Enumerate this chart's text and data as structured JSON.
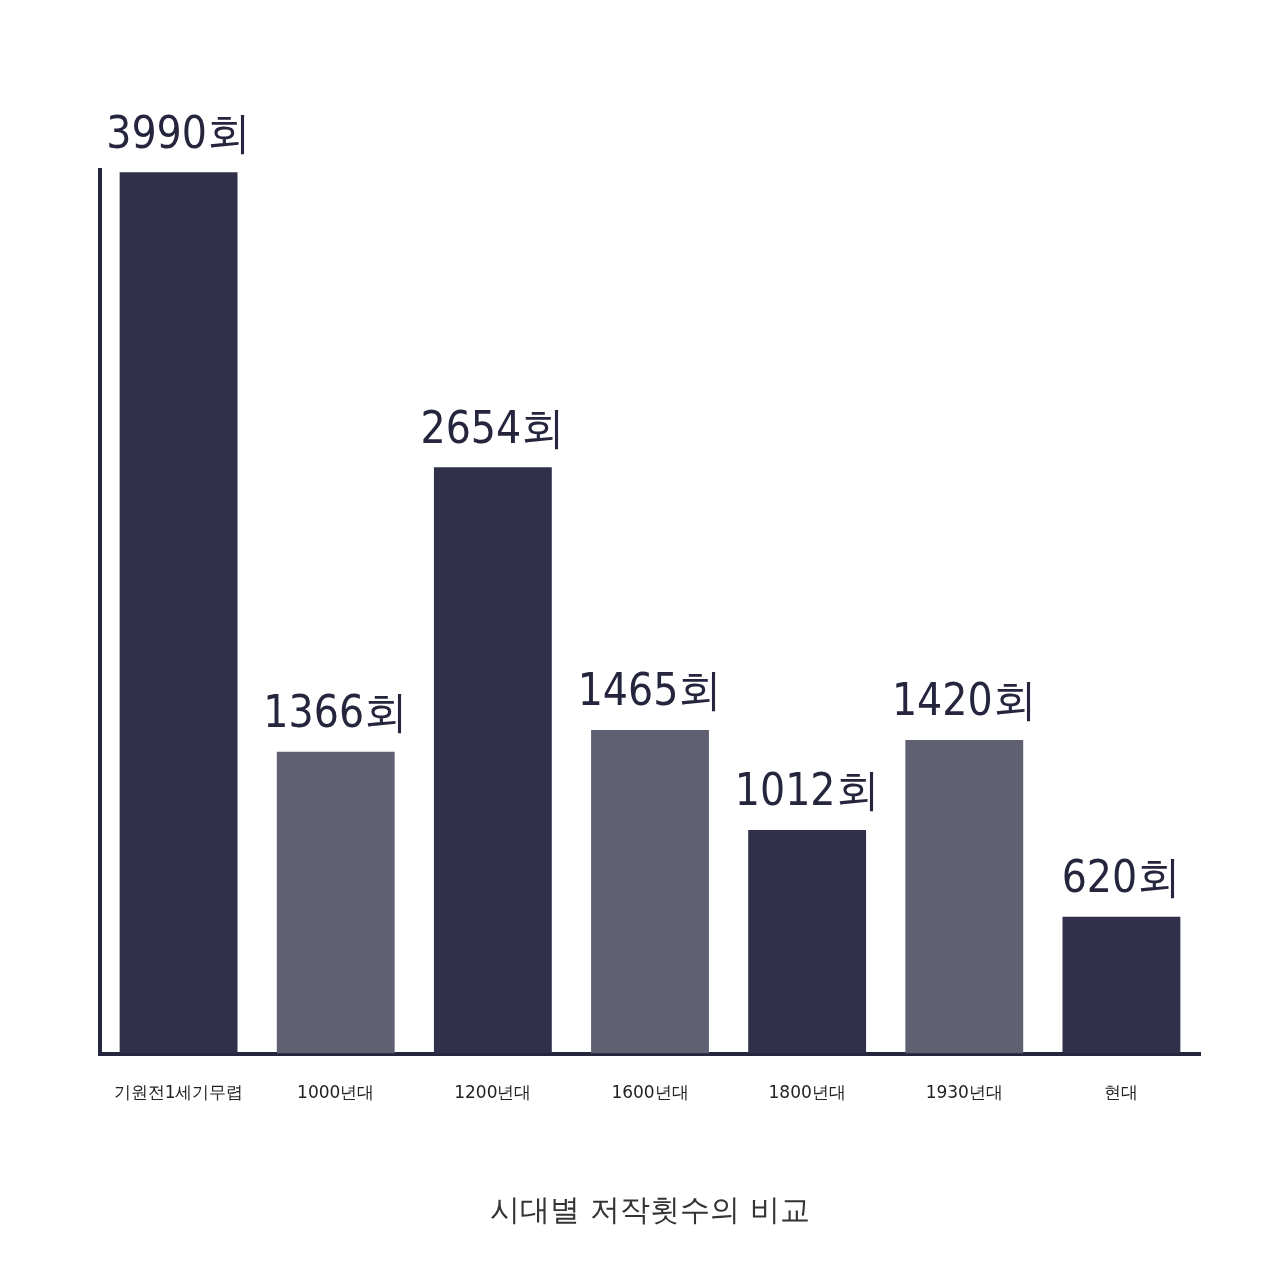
{
  "chart_data": {
    "type": "bar",
    "title": "시대별 저작횟수의 비교",
    "categories": [
      "기원전1세기무렵",
      "1000년대",
      "1200년대",
      "1600년대",
      "1800년대",
      "1930년대",
      "현대"
    ],
    "values": [
      3990,
      1366,
      2654,
      1465,
      1012,
      1420,
      620
    ],
    "value_labels": [
      "3990회",
      "1366회",
      "2654회",
      "1465회",
      "1012회",
      "1420회",
      "620회"
    ],
    "colors": [
      "#30304a",
      "#606073",
      "#30304a",
      "#606073",
      "#30304a",
      "#606073",
      "#30304a"
    ],
    "tick_labels": "x",
    "grid": false,
    "legend": false
  }
}
